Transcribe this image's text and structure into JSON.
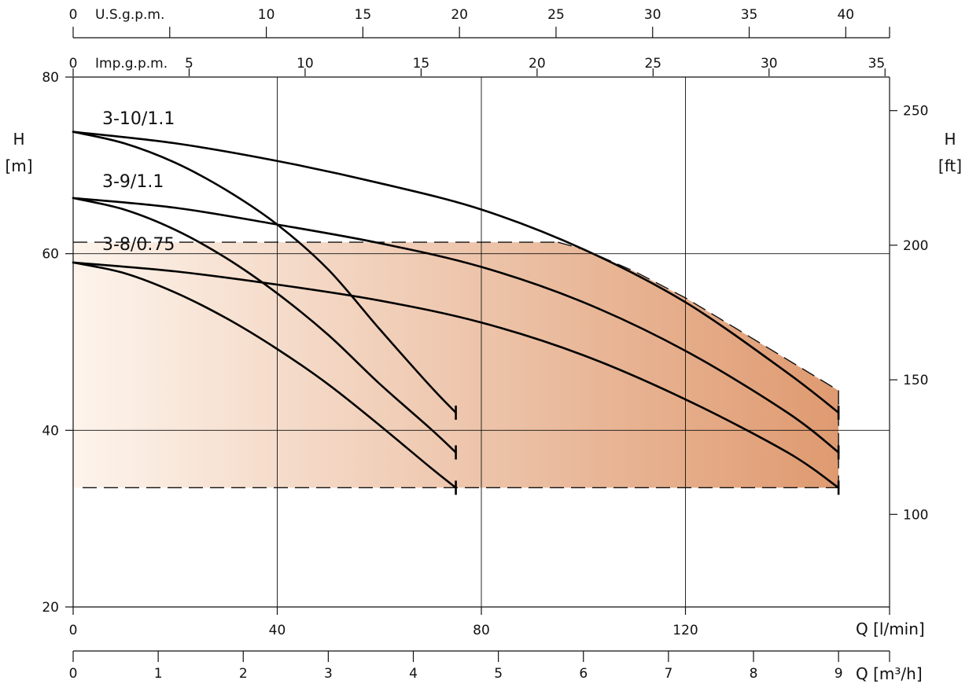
{
  "chart_data": {
    "type": "line",
    "title": "",
    "xlabel": "Q [l/min]",
    "ylabel": "H [m]",
    "ylabel_right": "H [ft]",
    "x_unit_label": "Q [l/min]",
    "x2_unit_label": "Q [m³/h]",
    "top1_unit_label": "U.S.g.p.m.",
    "top2_unit_label": "Imp.g.p.m.",
    "xlim": [
      0,
      160
    ],
    "ylim": [
      20,
      80
    ],
    "grid": true,
    "x_ticks": [
      0,
      40,
      80,
      120
    ],
    "y_ticks": [
      20,
      40,
      60,
      80
    ],
    "y_right_ticks": [
      100,
      150,
      200,
      250
    ],
    "x_m3h_ticks": [
      0,
      1,
      2,
      3,
      4,
      5,
      6,
      7,
      8,
      9
    ],
    "x_usgpm_ticks": [
      0,
      5,
      10,
      15,
      20,
      25,
      30,
      35,
      40
    ],
    "x_usgpm_labeled": [
      0,
      10,
      15,
      20,
      25,
      30,
      35,
      40
    ],
    "x_impgpm_ticks": [
      0,
      5,
      10,
      15,
      20,
      25,
      30,
      35
    ],
    "series": [
      {
        "name": "3-10/1.1",
        "x": [
          0,
          20,
          40,
          60,
          80,
          100,
          120,
          140,
          150
        ],
        "y": [
          73.8,
          72.5,
          70.5,
          68.0,
          65.0,
          60.5,
          54.5,
          46.5,
          42.0
        ]
      },
      {
        "name": "3-9/1.1",
        "x": [
          0,
          20,
          40,
          60,
          80,
          100,
          120,
          140,
          150
        ],
        "y": [
          66.3,
          65.2,
          63.3,
          61.2,
          58.5,
          54.5,
          49.0,
          42.0,
          37.5
        ]
      },
      {
        "name": "3-8/0.75",
        "x": [
          0,
          20,
          40,
          60,
          80,
          100,
          120,
          140,
          150
        ],
        "y": [
          59.0,
          58.0,
          56.5,
          54.7,
          52.2,
          48.5,
          43.5,
          37.5,
          33.5
        ]
      },
      {
        "name": "",
        "x": [
          0,
          10,
          20,
          30,
          40,
          50,
          60,
          70,
          75
        ],
        "y": [
          73.8,
          72.5,
          70.3,
          67.2,
          63.3,
          58.2,
          51.5,
          45.0,
          42.0
        ]
      },
      {
        "name": "",
        "x": [
          0,
          10,
          20,
          30,
          40,
          50,
          60,
          70,
          75
        ],
        "y": [
          66.3,
          65.0,
          62.7,
          59.5,
          55.5,
          50.8,
          45.3,
          40.2,
          37.5
        ]
      },
      {
        "name": "",
        "x": [
          0,
          10,
          20,
          30,
          40,
          50,
          60,
          70,
          75
        ],
        "y": [
          59.0,
          57.8,
          55.6,
          52.7,
          49.2,
          45.2,
          40.6,
          35.8,
          33.5
        ]
      }
    ],
    "operating_range": {
      "h_max": 61.3,
      "h_min": 33.5,
      "q_max": 150,
      "boundary": [
        [
          95,
          61.3
        ],
        [
          100,
          60.5
        ],
        [
          110,
          58.0
        ],
        [
          120,
          55.0
        ],
        [
          130,
          51.5
        ],
        [
          140,
          48.0
        ],
        [
          150,
          44.5
        ]
      ]
    },
    "colors": {
      "shade_start": "#fdf4ec",
      "shade_end": "#df9a70",
      "curve": "#000000"
    }
  }
}
